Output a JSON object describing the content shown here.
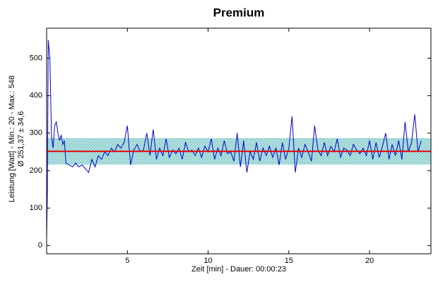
{
  "chart_data": {
    "type": "line",
    "title": "Premium",
    "x_label": "Zeit [min] - Dauer: 00:00:23",
    "y_label": [
      "Leistung [Watt] - Min.: 20 - Max.: 548",
      "Ø 251,37 ± 34,6"
    ],
    "mean": 251.37,
    "std": 34.6,
    "mean_color": "#e00000",
    "band_color": "#8fd3d3",
    "xlim": [
      0,
      23.8
    ],
    "ylim": [
      -22,
      580
    ],
    "xticks": [
      5,
      10,
      15,
      20
    ],
    "yticks": [
      0,
      100,
      200,
      300,
      400,
      500
    ],
    "grid": false,
    "x": [
      0,
      0.05,
      0.1,
      0.2,
      0.3,
      0.4,
      0.5,
      0.6,
      0.7,
      0.8,
      0.9,
      1.0,
      1.1,
      1.2,
      1.4,
      1.6,
      1.8,
      2.0,
      2.2,
      2.4,
      2.6,
      2.8,
      3.0,
      3.2,
      3.4,
      3.6,
      3.8,
      4.0,
      4.2,
      4.4,
      4.6,
      4.8,
      5.0,
      5.1,
      5.2,
      5.4,
      5.6,
      5.8,
      6.0,
      6.2,
      6.4,
      6.6,
      6.8,
      7.0,
      7.2,
      7.4,
      7.6,
      7.8,
      8.0,
      8.2,
      8.4,
      8.6,
      8.8,
      9.0,
      9.2,
      9.4,
      9.6,
      9.8,
      10.0,
      10.2,
      10.4,
      10.6,
      10.8,
      11.0,
      11.2,
      11.4,
      11.6,
      11.8,
      12.0,
      12.2,
      12.4,
      12.6,
      12.8,
      13.0,
      13.2,
      13.4,
      13.6,
      13.8,
      14.0,
      14.2,
      14.4,
      14.6,
      14.8,
      15.0,
      15.2,
      15.4,
      15.6,
      15.8,
      16.0,
      16.2,
      16.4,
      16.6,
      16.8,
      17.0,
      17.2,
      17.4,
      17.6,
      17.8,
      18.0,
      18.2,
      18.4,
      18.6,
      18.8,
      19.0,
      19.2,
      19.4,
      19.6,
      19.8,
      20.0,
      20.2,
      20.4,
      20.6,
      20.8,
      21.0,
      21.2,
      21.4,
      21.6,
      21.8,
      22.0,
      22.2,
      22.4,
      22.6,
      22.8,
      23.0,
      23.2
    ],
    "series": [
      {
        "name": "Leistung",
        "color": "#0000cc",
        "values": [
          20,
          150,
          548,
          500,
          290,
          260,
          320,
          330,
          300,
          280,
          295,
          270,
          280,
          220,
          215,
          210,
          220,
          210,
          215,
          205,
          195,
          230,
          210,
          240,
          230,
          250,
          240,
          260,
          250,
          270,
          260,
          275,
          320,
          265,
          215,
          255,
          270,
          250,
          255,
          300,
          240,
          310,
          230,
          260,
          240,
          285,
          235,
          255,
          245,
          260,
          230,
          275,
          250,
          255,
          240,
          260,
          235,
          265,
          250,
          285,
          230,
          260,
          240,
          280,
          245,
          250,
          225,
          300,
          210,
          280,
          195,
          250,
          230,
          275,
          225,
          260,
          240,
          265,
          235,
          260,
          215,
          275,
          230,
          260,
          345,
          195,
          260,
          235,
          270,
          250,
          225,
          320,
          255,
          240,
          275,
          240,
          265,
          250,
          285,
          235,
          260,
          255,
          240,
          270,
          255,
          245,
          260,
          240,
          280,
          230,
          275,
          235,
          265,
          300,
          230,
          270,
          240,
          280,
          230,
          330,
          250,
          275,
          350,
          250,
          280
        ]
      }
    ]
  }
}
